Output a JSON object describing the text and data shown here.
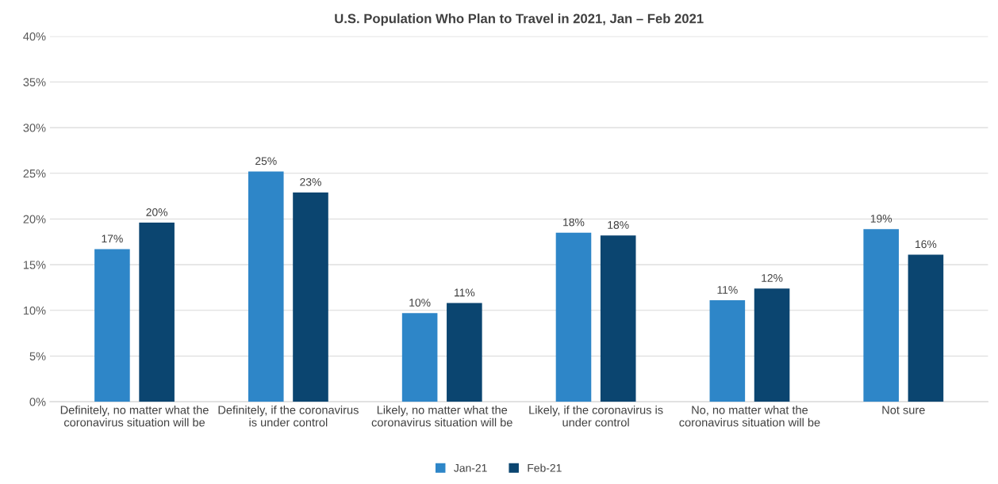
{
  "chart_data": {
    "type": "bar",
    "title": "U.S. Population Who Plan to Travel in 2021, Jan – Feb 2021",
    "categories": [
      "Definitely, no matter what the coronavirus situation will be",
      "Definitely, if the coronavirus is under control",
      "Likely, no matter what the coronavirus situation will be",
      "Likely, if the coronavirus is under control",
      "No, no matter what the coronavirus situation will be",
      "Not sure"
    ],
    "series": [
      {
        "name": "Jan-21",
        "color": "#2e86c8",
        "values": [
          16.7,
          25.2,
          9.7,
          18.5,
          11.1,
          18.9
        ],
        "value_labels": [
          "17%",
          "25%",
          "10%",
          "18%",
          "11%",
          "19%"
        ]
      },
      {
        "name": "Feb-21",
        "color": "#0b4570",
        "values": [
          19.6,
          22.9,
          10.8,
          18.2,
          12.4,
          16.1
        ],
        "value_labels": [
          "20%",
          "23%",
          "11%",
          "18%",
          "12%",
          "16%"
        ]
      }
    ],
    "ylim": [
      0,
      40
    ],
    "yticks": [
      {
        "value": 0,
        "label": "0%"
      },
      {
        "value": 5,
        "label": "5%"
      },
      {
        "value": 10,
        "label": "10%"
      },
      {
        "value": 15,
        "label": "15%"
      },
      {
        "value": 20,
        "label": "20%"
      },
      {
        "value": 25,
        "label": "25%"
      },
      {
        "value": 30,
        "label": "30%"
      },
      {
        "value": 35,
        "label": "35%"
      },
      {
        "value": 40,
        "label": "40%"
      }
    ],
    "grid": "y",
    "legend": "bottom"
  }
}
